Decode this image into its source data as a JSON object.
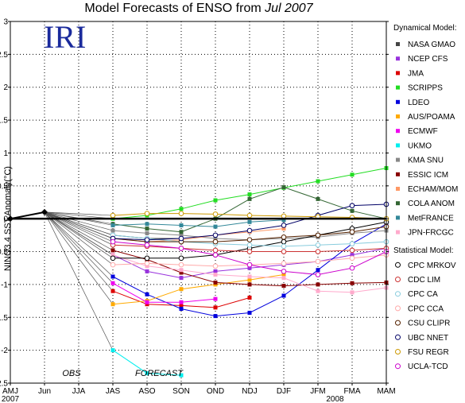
{
  "chart_data": {
    "type": "line",
    "title_prefix": "Model Forecasts of ENSO from ",
    "title_month": "Jul 2007",
    "logo": "IRI",
    "ylabel": "NINO3.4 SST Anomaly(°C)",
    "ylim": [
      -2.5,
      3
    ],
    "yticks": [
      "3",
      "2.5",
      "2",
      "1.5",
      "1",
      "0.5",
      "0",
      "-0.5",
      "-1",
      "-1.5",
      "-2",
      "-2.5"
    ],
    "categories": [
      "AMJ",
      "Jun",
      "JJA",
      "JAS",
      "ASO",
      "SON",
      "OND",
      "NDJ",
      "DJF",
      "JFM",
      "FMA",
      "MAM"
    ],
    "year_labels": [
      {
        "index": 0,
        "label": "2007"
      },
      {
        "index": 9.5,
        "label": "2008"
      }
    ],
    "obs_label": "OBS",
    "forecast_label": "FORECAST",
    "obs": [
      [
        0,
        0.0
      ],
      [
        1,
        0.1
      ]
    ],
    "start_index": 1,
    "start_value": 0.1,
    "legend_dynamical_title": "Dynamical Model:",
    "legend_statistical_title": "Statistical Model:",
    "grid": true,
    "series": [
      {
        "name": "NASA GMAO",
        "group": "dynamical",
        "color": "#444444",
        "values": [
          [
            3,
            -0.25
          ],
          [
            4,
            -0.3
          ],
          [
            5,
            -0.3
          ]
        ]
      },
      {
        "name": "NCEP CFS",
        "group": "dynamical",
        "color": "#9933dd",
        "values": [
          [
            3,
            -0.55
          ],
          [
            4,
            -0.8
          ],
          [
            5,
            -0.9
          ],
          [
            6,
            -0.8
          ],
          [
            7,
            -0.75
          ],
          [
            8,
            -0.7
          ],
          [
            9,
            -0.65
          ],
          [
            10,
            -0.55
          ],
          [
            11,
            -0.45
          ]
        ]
      },
      {
        "name": "JMA",
        "group": "dynamical",
        "color": "#dd0000",
        "values": [
          [
            3,
            -1.1
          ],
          [
            4,
            -1.3
          ],
          [
            5,
            -1.32
          ],
          [
            6,
            -1.35
          ],
          [
            7,
            -1.2
          ]
        ]
      },
      {
        "name": "SCRIPPS",
        "group": "dynamical",
        "color": "#22dd22",
        "values": [
          [
            3,
            0.0
          ],
          [
            4,
            0.05
          ],
          [
            5,
            0.15
          ],
          [
            6,
            0.28
          ],
          [
            7,
            0.37
          ],
          [
            8,
            0.47
          ],
          [
            9,
            0.57
          ],
          [
            10,
            0.67
          ],
          [
            11,
            0.77
          ]
        ]
      },
      {
        "name": "LDEO",
        "group": "dynamical",
        "color": "#0000dd",
        "values": [
          [
            3,
            -0.88
          ],
          [
            4,
            -1.15
          ],
          [
            5,
            -1.37
          ],
          [
            6,
            -1.48
          ],
          [
            7,
            -1.43
          ],
          [
            8,
            -1.17
          ],
          [
            9,
            -0.78
          ],
          [
            10,
            -0.38
          ],
          [
            11,
            -0.08
          ]
        ]
      },
      {
        "name": "AUS/POAMA",
        "group": "dynamical",
        "color": "#ffaa00",
        "values": [
          [
            3,
            -1.3
          ],
          [
            4,
            -1.25
          ],
          [
            5,
            -1.07
          ],
          [
            6,
            -1.0
          ],
          [
            7,
            -0.93
          ],
          [
            8,
            -0.85
          ]
        ]
      },
      {
        "name": "ECMWF",
        "group": "dynamical",
        "color": "#ee00ee",
        "values": [
          [
            3,
            -0.98
          ],
          [
            4,
            -1.27
          ],
          [
            5,
            -1.27
          ],
          [
            6,
            -1.22
          ]
        ]
      },
      {
        "name": "UKMO",
        "group": "dynamical",
        "color": "#00eeee",
        "values": [
          [
            3,
            -2.0
          ],
          [
            4,
            -2.35
          ],
          [
            5,
            -2.38
          ]
        ]
      },
      {
        "name": "KMA SNU",
        "group": "dynamical",
        "color": "#888888",
        "values": [
          [
            3,
            -0.18
          ],
          [
            4,
            -0.22
          ],
          [
            5,
            -0.25
          ],
          [
            6,
            -0.3
          ],
          [
            7,
            -0.32
          ],
          [
            8,
            -0.3
          ],
          [
            9,
            -0.28
          ],
          [
            10,
            -0.22
          ],
          [
            11,
            -0.18
          ]
        ]
      },
      {
        "name": "ESSIC ICM",
        "group": "dynamical",
        "color": "#880000",
        "values": [
          [
            3,
            -0.48
          ],
          [
            4,
            -0.62
          ],
          [
            5,
            -0.82
          ],
          [
            6,
            -0.97
          ],
          [
            7,
            -1.0
          ],
          [
            8,
            -1.02
          ],
          [
            9,
            -1.0
          ],
          [
            10,
            -0.98
          ],
          [
            11,
            -0.97
          ]
        ]
      },
      {
        "name": "ECHAM/MOM",
        "group": "dynamical",
        "color": "#ff9966",
        "values": [
          [
            3,
            -0.3
          ],
          [
            4,
            -0.35
          ],
          [
            5,
            -0.32
          ],
          [
            6,
            -0.25
          ],
          [
            7,
            -0.2
          ],
          [
            8,
            -0.15
          ]
        ]
      },
      {
        "name": "COLA ANOM",
        "group": "dynamical",
        "color": "#336633",
        "values": [
          [
            3,
            -0.08
          ],
          [
            4,
            -0.15
          ],
          [
            5,
            -0.2
          ],
          [
            6,
            0.0
          ],
          [
            7,
            0.3
          ],
          [
            8,
            0.48
          ],
          [
            9,
            0.3
          ],
          [
            10,
            0.12
          ],
          [
            11,
            0.0
          ]
        ]
      },
      {
        "name": "MetFRANCE",
        "group": "dynamical",
        "color": "#338899",
        "values": [
          [
            3,
            -0.1
          ],
          [
            4,
            -0.08
          ],
          [
            5,
            -0.1
          ],
          [
            6,
            -0.12
          ],
          [
            7,
            -0.05
          ],
          [
            8,
            -0.02
          ]
        ]
      },
      {
        "name": "JPN-FRCGC",
        "group": "dynamical",
        "color": "#ffaacc",
        "values": [
          [
            3,
            -0.55
          ],
          [
            4,
            -0.72
          ],
          [
            5,
            -0.78
          ],
          [
            6,
            -0.85
          ],
          [
            7,
            -0.88
          ],
          [
            8,
            -0.9
          ],
          [
            9,
            -1.1
          ],
          [
            10,
            -1.12
          ],
          [
            11,
            -1.05
          ]
        ]
      },
      {
        "name": "CPC MRKOV",
        "group": "statistical",
        "color": "#000000",
        "values": [
          [
            3,
            -0.6
          ],
          [
            4,
            -0.6
          ],
          [
            5,
            -0.6
          ],
          [
            6,
            -0.55
          ],
          [
            7,
            -0.45
          ],
          [
            8,
            -0.35
          ],
          [
            9,
            -0.25
          ],
          [
            10,
            -0.15
          ],
          [
            11,
            -0.05
          ]
        ]
      },
      {
        "name": "CDC LIM",
        "group": "statistical",
        "color": "#cc3333",
        "values": [
          [
            3,
            -0.4
          ],
          [
            4,
            -0.42
          ],
          [
            5,
            -0.45
          ],
          [
            6,
            -0.48
          ],
          [
            7,
            -0.5
          ],
          [
            8,
            -0.5
          ],
          [
            9,
            -0.5
          ],
          [
            10,
            -0.48
          ],
          [
            11,
            -0.45
          ]
        ]
      },
      {
        "name": "CPC CA",
        "group": "statistical",
        "color": "#88ccdd",
        "values": [
          [
            3,
            -0.25
          ],
          [
            4,
            -0.3
          ],
          [
            5,
            -0.35
          ],
          [
            6,
            -0.38
          ],
          [
            7,
            -0.4
          ],
          [
            8,
            -0.42
          ],
          [
            9,
            -0.4
          ],
          [
            10,
            -0.38
          ],
          [
            11,
            -0.35
          ]
        ]
      },
      {
        "name": "CPC CCA",
        "group": "statistical",
        "color": "#ffaaaa",
        "values": [
          [
            3,
            -0.7
          ],
          [
            4,
            -0.68
          ],
          [
            5,
            -0.7
          ],
          [
            6,
            -0.72
          ],
          [
            7,
            -0.7
          ],
          [
            8,
            -0.68
          ],
          [
            9,
            -0.65
          ],
          [
            10,
            -0.6
          ],
          [
            11,
            -0.55
          ]
        ]
      },
      {
        "name": "CSU CLIPR",
        "group": "statistical",
        "color": "#552200",
        "values": [
          [
            3,
            -0.3
          ],
          [
            4,
            -0.35
          ],
          [
            5,
            -0.35
          ],
          [
            6,
            -0.35
          ],
          [
            7,
            -0.32
          ],
          [
            8,
            -0.28
          ],
          [
            9,
            -0.25
          ],
          [
            10,
            -0.2
          ],
          [
            11,
            -0.12
          ]
        ]
      },
      {
        "name": "UBC NNET",
        "group": "statistical",
        "color": "#000066",
        "values": [
          [
            3,
            -0.3
          ],
          [
            4,
            -0.32
          ],
          [
            5,
            -0.3
          ],
          [
            6,
            -0.25
          ],
          [
            7,
            -0.18
          ],
          [
            8,
            -0.1
          ],
          [
            9,
            0.05
          ],
          [
            10,
            0.2
          ],
          [
            11,
            0.22
          ]
        ]
      },
      {
        "name": "FSU REGR",
        "group": "statistical",
        "color": "#cc9900",
        "values": [
          [
            3,
            0.05
          ],
          [
            4,
            0.08
          ],
          [
            5,
            0.08
          ],
          [
            6,
            0.07
          ],
          [
            7,
            0.05
          ],
          [
            8,
            0.04
          ],
          [
            9,
            0.03
          ],
          [
            10,
            0.02
          ],
          [
            11,
            0.0
          ]
        ]
      },
      {
        "name": "UCLA-TCD",
        "group": "statistical",
        "color": "#cc00cc",
        "values": [
          [
            3,
            -0.35
          ],
          [
            4,
            -0.4
          ],
          [
            5,
            -0.45
          ],
          [
            6,
            -0.55
          ],
          [
            7,
            -0.7
          ],
          [
            8,
            -0.8
          ],
          [
            9,
            -0.85
          ],
          [
            10,
            -0.75
          ],
          [
            11,
            -0.5
          ]
        ]
      }
    ]
  }
}
